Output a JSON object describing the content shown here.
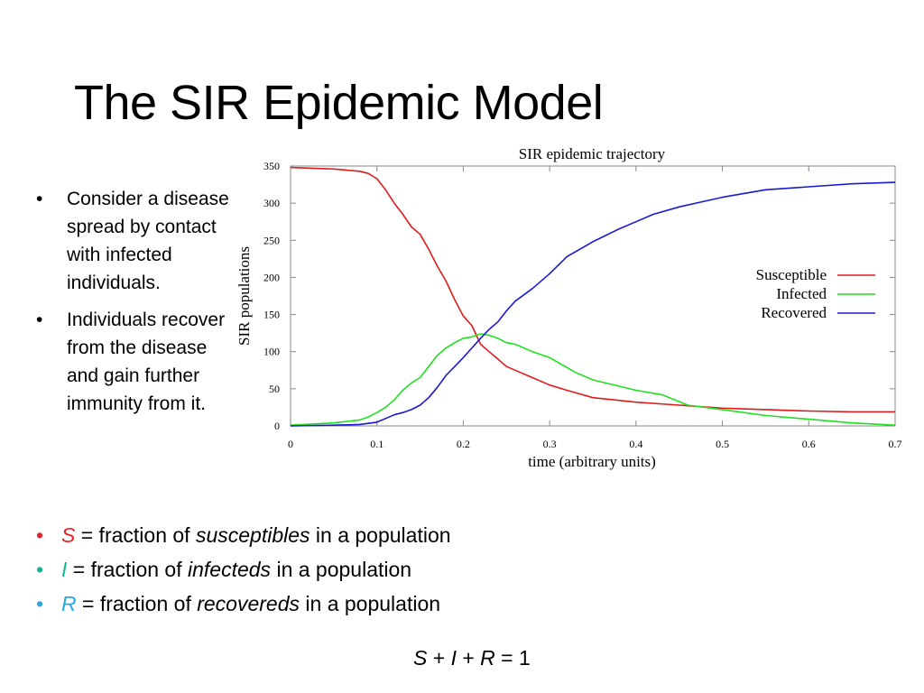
{
  "slide": {
    "title": "The SIR Epidemic Model",
    "bullets": [
      "Consider a disease spread by contact with infected individuals.",
      "Individuals recover from the disease and gain further immunity from it."
    ],
    "definitions": [
      {
        "var": "S",
        "eq": " = fraction of ",
        "term": "susceptibles",
        "rest": " in a population",
        "color": "#e8212a"
      },
      {
        "var": "I",
        "eq": " = fraction of ",
        "term": "infecteds",
        "rest": " in a population",
        "color": "#17b890"
      },
      {
        "var": "R",
        "eq": " = fraction of ",
        "term": "recovereds",
        "rest": " in a population",
        "color": "#2aa7e0"
      }
    ],
    "equation": {
      "s": "S",
      "plus1": " + ",
      "i": "I",
      "plus2": " + ",
      "r": "R",
      "equals": " = 1"
    }
  },
  "chart_data": {
    "type": "line",
    "title": "SIR epidemic trajectory",
    "xlabel": "time (arbitrary units)",
    "ylabel": "SIR populations",
    "xlim": [
      0,
      0.7
    ],
    "ylim": [
      0,
      350
    ],
    "xticks": [
      0,
      0.1,
      0.2,
      0.3,
      0.4,
      0.5,
      0.6,
      0.7
    ],
    "xtick_labels": [
      "0",
      "0.1",
      "0.2",
      "0.3",
      "0.4",
      "0.5",
      "0.6",
      "0.7"
    ],
    "yticks": [
      0,
      50,
      100,
      150,
      200,
      250,
      300,
      350
    ],
    "ytick_labels": [
      "0",
      "50",
      "100",
      "150",
      "200",
      "250",
      "300",
      "350"
    ],
    "grid": false,
    "legend_position": "right",
    "series": [
      {
        "name": "Susceptible",
        "color": "#e01b1b",
        "x": [
          0,
          0.05,
          0.08,
          0.09,
          0.1,
          0.11,
          0.12,
          0.13,
          0.14,
          0.15,
          0.16,
          0.17,
          0.18,
          0.19,
          0.2,
          0.21,
          0.22,
          0.23,
          0.24,
          0.25,
          0.26,
          0.28,
          0.3,
          0.32,
          0.35,
          0.4,
          0.45,
          0.5,
          0.55,
          0.6,
          0.65,
          0.7
        ],
        "y": [
          348,
          346,
          343,
          340,
          333,
          318,
          300,
          285,
          268,
          258,
          238,
          215,
          195,
          170,
          148,
          135,
          110,
          100,
          90,
          80,
          75,
          65,
          55,
          48,
          38,
          32,
          28,
          24,
          22,
          20,
          19,
          19
        ]
      },
      {
        "name": "Infected",
        "color": "#1ee01e",
        "x": [
          0,
          0.05,
          0.08,
          0.09,
          0.1,
          0.11,
          0.12,
          0.13,
          0.14,
          0.15,
          0.16,
          0.17,
          0.18,
          0.19,
          0.2,
          0.21,
          0.22,
          0.23,
          0.24,
          0.25,
          0.26,
          0.28,
          0.3,
          0.33,
          0.35,
          0.4,
          0.43,
          0.46,
          0.5,
          0.55,
          0.6,
          0.65,
          0.7
        ],
        "y": [
          1,
          4,
          8,
          12,
          18,
          25,
          35,
          48,
          58,
          65,
          80,
          95,
          105,
          112,
          118,
          120,
          124,
          122,
          118,
          112,
          110,
          100,
          92,
          72,
          62,
          48,
          42,
          28,
          22,
          14,
          9,
          4,
          1
        ]
      },
      {
        "name": "Recovered",
        "color": "#1a1ad4",
        "x": [
          0,
          0.05,
          0.08,
          0.1,
          0.11,
          0.12,
          0.13,
          0.14,
          0.15,
          0.16,
          0.17,
          0.18,
          0.19,
          0.2,
          0.21,
          0.22,
          0.23,
          0.24,
          0.25,
          0.26,
          0.28,
          0.3,
          0.32,
          0.35,
          0.38,
          0.4,
          0.42,
          0.45,
          0.5,
          0.55,
          0.6,
          0.65,
          0.7
        ],
        "y": [
          0,
          1,
          2,
          5,
          10,
          15,
          18,
          22,
          28,
          38,
          52,
          68,
          80,
          92,
          105,
          118,
          130,
          140,
          155,
          168,
          185,
          205,
          228,
          248,
          265,
          275,
          285,
          295,
          308,
          318,
          322,
          326,
          328
        ]
      }
    ]
  }
}
